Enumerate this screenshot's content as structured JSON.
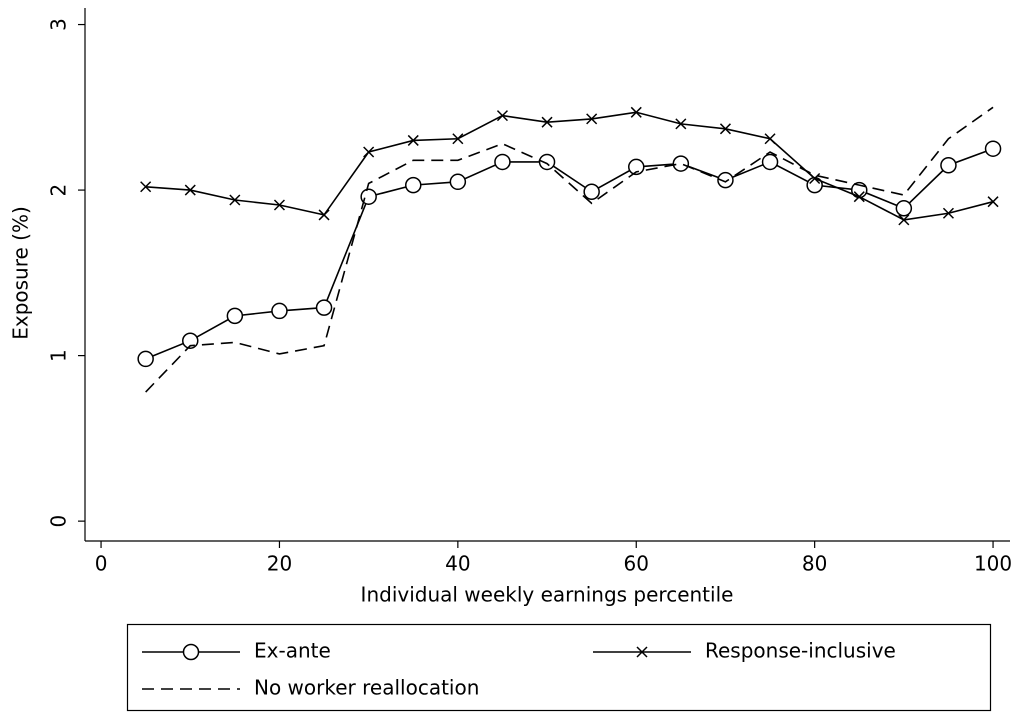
{
  "chart_data": {
    "type": "line",
    "x_label": "Individual weekly earnings percentile",
    "y_label": "Exposure (%)",
    "x": [
      5,
      10,
      15,
      20,
      25,
      30,
      35,
      40,
      45,
      50,
      55,
      60,
      65,
      70,
      75,
      80,
      85,
      90,
      95,
      100
    ],
    "series": [
      {
        "name": "Ex-ante",
        "color": "#000000",
        "marker": "circle",
        "dash": false,
        "values": [
          0.98,
          1.09,
          1.24,
          1.27,
          1.29,
          1.96,
          2.03,
          2.05,
          2.17,
          2.17,
          1.99,
          2.14,
          2.16,
          2.06,
          2.17,
          2.03,
          2.0,
          1.89,
          2.15,
          2.25
        ]
      },
      {
        "name": "Response-inclusive",
        "color": "#000000",
        "marker": "x",
        "dash": false,
        "values": [
          2.02,
          2.0,
          1.94,
          1.91,
          1.85,
          2.23,
          2.3,
          2.31,
          2.45,
          2.41,
          2.43,
          2.47,
          2.4,
          2.37,
          2.31,
          2.07,
          1.96,
          1.82,
          1.86,
          1.93
        ]
      },
      {
        "name": "No worker reallocation",
        "color": "#000000",
        "marker": "none",
        "dash": true,
        "values": [
          0.78,
          1.06,
          1.08,
          1.01,
          1.06,
          2.04,
          2.18,
          2.18,
          2.28,
          2.16,
          1.92,
          2.11,
          2.16,
          2.05,
          2.23,
          2.09,
          2.03,
          1.97,
          2.31,
          2.5
        ]
      }
    ],
    "xlim": [
      -1.8,
      101.9
    ],
    "ylim": [
      -0.12,
      3.1
    ],
    "xticks": [
      0,
      20,
      40,
      60,
      80,
      100
    ],
    "yticks": [
      0,
      1,
      2,
      3
    ],
    "grid": false
  }
}
